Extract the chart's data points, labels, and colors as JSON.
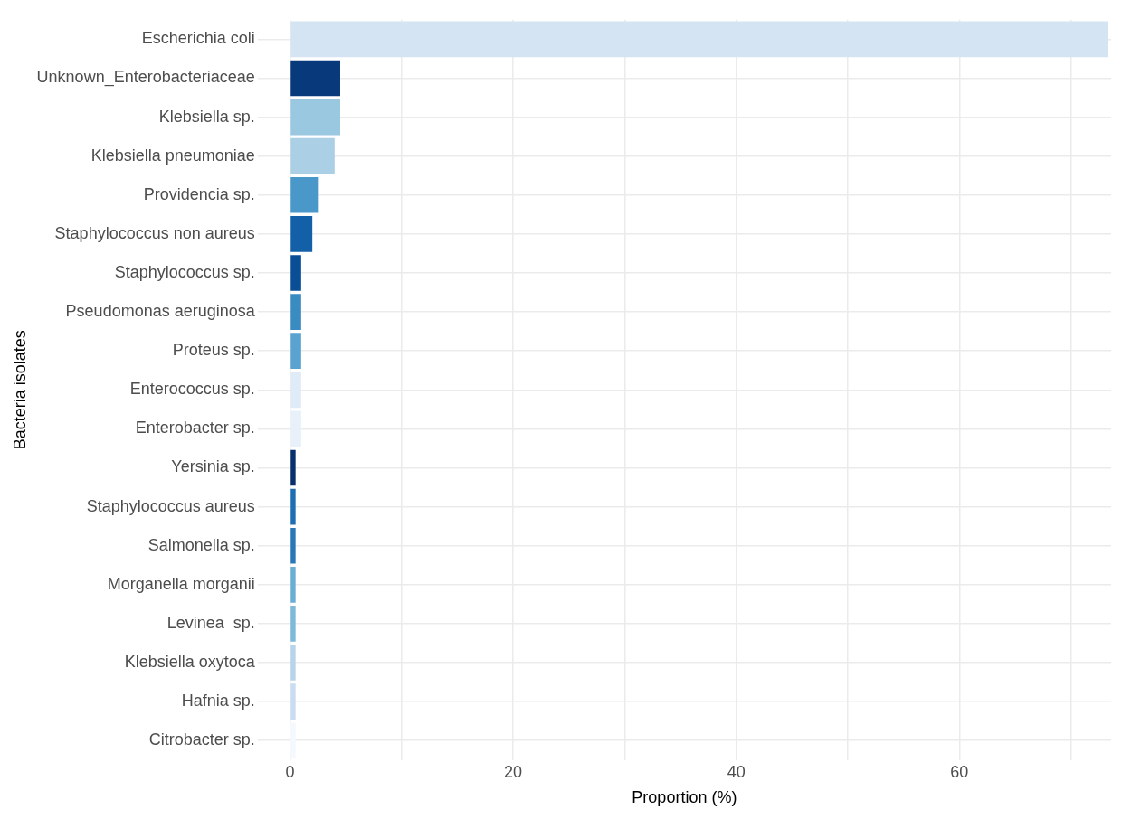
{
  "chart_data": {
    "type": "bar",
    "orientation": "horizontal",
    "xlabel": "Proportion (%)",
    "ylabel": "Bacteria isolates",
    "categories": [
      "Escherichia coli",
      "Unknown_Enterobacteriaceae",
      "Klebsiella sp.",
      "Klebsiella pneumoniae",
      "Providencia sp.",
      "Staphylococcus non aureus",
      "Staphylococcus sp.",
      "Pseudomonas aeruginosa",
      "Proteus sp.",
      "Enterococcus sp.",
      "Enterobacter sp.",
      "Yersinia sp.",
      "Staphylococcus aureus",
      "Salmonella sp.",
      "Morganella morganii",
      "Levinea  sp.",
      "Klebsiella oxytoca",
      "Hafnia sp.",
      "Citrobacter sp."
    ],
    "values": [
      73.3,
      4.5,
      4.5,
      4.0,
      2.5,
      2.0,
      1.0,
      1.0,
      1.0,
      1.0,
      1.0,
      0.5,
      0.5,
      0.5,
      0.5,
      0.5,
      0.5,
      0.5,
      0.5
    ],
    "colors": [
      "#d5e4f3",
      "#08397a",
      "#9ac8e0",
      "#abd0e6",
      "#4a97c9",
      "#1460a8",
      "#0a4f95",
      "#3a8bc2",
      "#5aa2d0",
      "#dfebf7",
      "#e8f1fa",
      "#08306b",
      "#1f6eb2",
      "#2878b8",
      "#6aaed6",
      "#7fb9da",
      "#b7d4ea",
      "#c9ddf0",
      "#f4f9fe"
    ],
    "xlim": [
      -2.9,
      73.6
    ],
    "xticks": [
      0,
      {
        "value": 10,
        "label": null
      },
      20,
      {
        "value": 30,
        "label": null
      },
      40,
      {
        "value": 50,
        "label": null
      },
      60,
      {
        "value": 70,
        "label": null
      }
    ],
    "grid": true,
    "legend": false
  }
}
